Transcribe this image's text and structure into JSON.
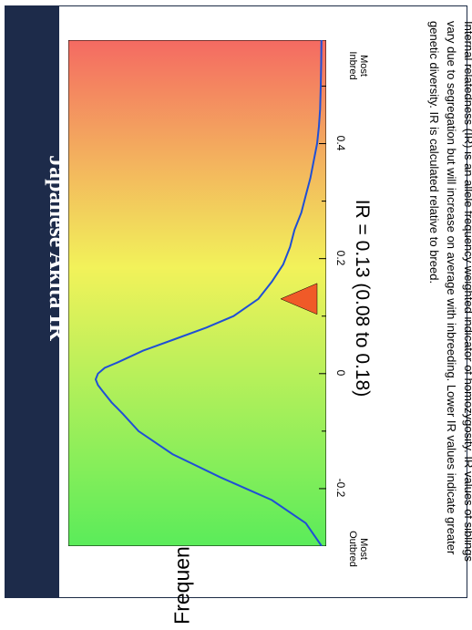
{
  "chart_data": {
    "type": "line",
    "title": "Japanese Akita IR",
    "ylabel": "Frequency",
    "x_ticks": [
      {
        "value": -0.2,
        "label": "-0.2"
      },
      {
        "value": 0,
        "label": "0"
      },
      {
        "value": 0.2,
        "label": "0.2"
      },
      {
        "value": 0.4,
        "label": "0.4"
      }
    ],
    "minor_ticks": [
      -0.1,
      0.1,
      0.3,
      0.5
    ],
    "xlim": [
      -0.3,
      0.58
    ],
    "ylim": [
      0,
      1
    ],
    "end_labels": {
      "low": "Most Outbred",
      "high": "Most Inbred"
    },
    "series": [
      {
        "x": [
          -0.3,
          -0.26,
          -0.22,
          -0.18,
          -0.14,
          -0.1,
          -0.07,
          -0.05,
          -0.03,
          -0.02,
          -0.01,
          0.0,
          0.01,
          0.02,
          0.04,
          0.06,
          0.08,
          0.1,
          0.13,
          0.16,
          0.19,
          0.22,
          0.25,
          0.28,
          0.31,
          0.34,
          0.37,
          0.4,
          0.43,
          0.46,
          0.5,
          0.54,
          0.58
        ],
        "y": [
          0.0,
          0.07,
          0.22,
          0.45,
          0.66,
          0.81,
          0.88,
          0.93,
          0.97,
          0.99,
          1.0,
          0.99,
          0.96,
          0.9,
          0.79,
          0.65,
          0.51,
          0.39,
          0.28,
          0.22,
          0.17,
          0.14,
          0.12,
          0.09,
          0.07,
          0.05,
          0.035,
          0.02,
          0.012,
          0.007,
          0.004,
          0.002,
          0.001
        ]
      }
    ],
    "marker": {
      "value": 0.13,
      "shape": "triangle",
      "color": "#f05a28"
    },
    "gradient": {
      "low_color": "#5aec5a",
      "mid_color": "#f2f25a",
      "high_color": "#f46a62"
    },
    "line_color": "#1f4fd6"
  },
  "ir_text": "IR = 0.13 (0.08 to 0.18)",
  "description": "Internal relatedness (IR) is an allele frequency weighted indicator of homozygosity.  IR values of siblings vary due to segregation but will increase on average with inbreeding.  Lower IR values indicate greater genetic diversity.  IR is calculated relative to breed."
}
